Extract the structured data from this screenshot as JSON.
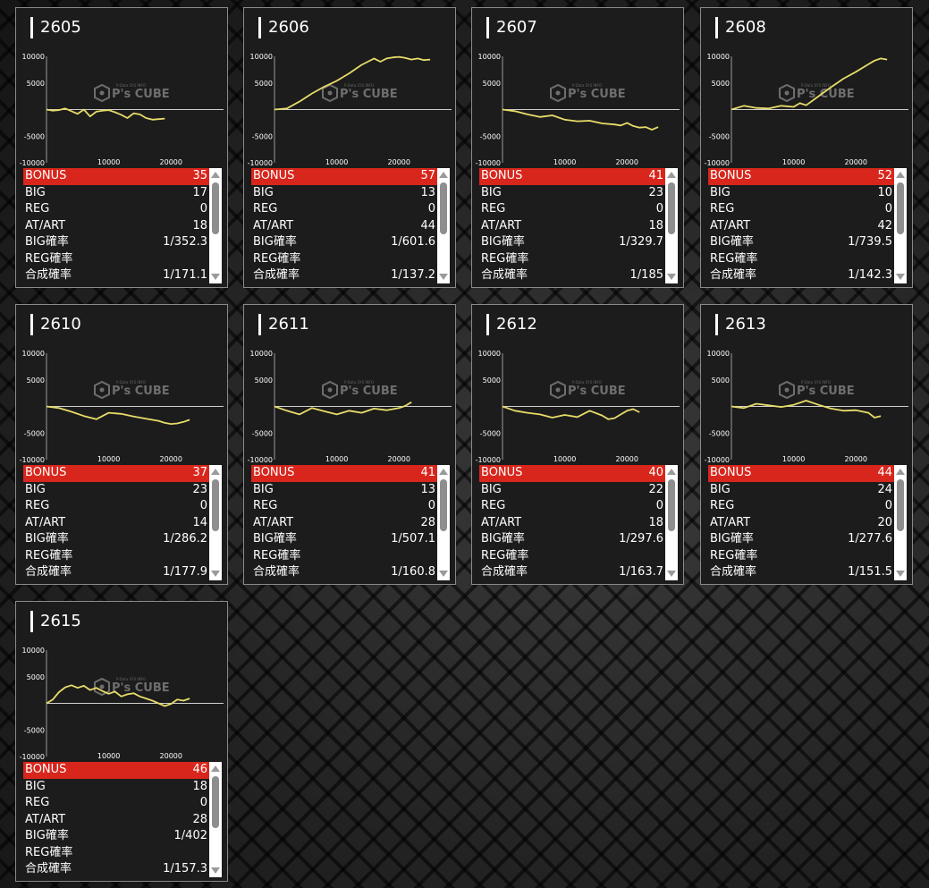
{
  "watermark": {
    "brand": "P's CUBE",
    "tagline": "P-Data SYS INFO"
  },
  "y_ticks": [
    "10000",
    "5000",
    "-5000",
    "-10000"
  ],
  "x_ticks": [
    "10000",
    "20000"
  ],
  "line_color": "#e8dc6a",
  "highlight_color": "#d8261c",
  "machines": [
    {
      "id": "2605",
      "stats": [
        [
          "BONUS",
          "35"
        ],
        [
          "BIG",
          "17"
        ],
        [
          "REG",
          "0"
        ],
        [
          "AT/ART",
          "18"
        ],
        [
          "BIG確率",
          "1/352.3"
        ],
        [
          "REG確率",
          ""
        ],
        [
          "合成確率",
          "1/171.1"
        ]
      ],
      "chart_data": {
        "type": "line",
        "x_range": [
          0,
          27000
        ],
        "y_range": [
          -10000,
          10000
        ],
        "x": [
          0,
          1000,
          2000,
          3000,
          4000,
          5000,
          6000,
          7000,
          8000,
          9000,
          10000,
          11000,
          12000,
          13000,
          14000,
          15000,
          16000,
          17000,
          18000,
          19000
        ],
        "y": [
          0,
          -200,
          -100,
          200,
          -300,
          -800,
          0,
          -1300,
          -400,
          -200,
          -100,
          -500,
          -1000,
          -1600,
          -700,
          -900,
          -1600,
          -1900,
          -1800,
          -1700
        ]
      }
    },
    {
      "id": "2606",
      "stats": [
        [
          "BONUS",
          "57"
        ],
        [
          "BIG",
          "13"
        ],
        [
          "REG",
          "0"
        ],
        [
          "AT/ART",
          "44"
        ],
        [
          "BIG確率",
          "1/601.6"
        ],
        [
          "REG確率",
          ""
        ],
        [
          "合成確率",
          "1/137.2"
        ]
      ],
      "chart_data": {
        "type": "line",
        "x_range": [
          0,
          27000
        ],
        "y_range": [
          -10000,
          10000
        ],
        "x": [
          0,
          2000,
          4000,
          6000,
          8000,
          10000,
          12000,
          13000,
          14000,
          15000,
          16000,
          17000,
          18000,
          19000,
          20000,
          21000,
          22000,
          23000,
          24000,
          25000
        ],
        "y": [
          0,
          200,
          1500,
          3000,
          4300,
          5400,
          6800,
          7600,
          8400,
          9000,
          9600,
          9000,
          9600,
          9800,
          9900,
          9700,
          9400,
          9600,
          9300,
          9400
        ]
      }
    },
    {
      "id": "2607",
      "stats": [
        [
          "BONUS",
          "41"
        ],
        [
          "BIG",
          "23"
        ],
        [
          "REG",
          "0"
        ],
        [
          "AT/ART",
          "18"
        ],
        [
          "BIG確率",
          "1/329.7"
        ],
        [
          "REG確率",
          ""
        ],
        [
          "合成確率",
          "1/185"
        ]
      ],
      "chart_data": {
        "type": "line",
        "x_range": [
          0,
          27000
        ],
        "y_range": [
          -10000,
          10000
        ],
        "x": [
          0,
          2000,
          4000,
          6000,
          8000,
          10000,
          12000,
          14000,
          16000,
          18000,
          19000,
          20000,
          21000,
          22000,
          23000,
          24000,
          25000
        ],
        "y": [
          0,
          -300,
          -900,
          -1400,
          -1100,
          -1900,
          -2200,
          -2100,
          -2600,
          -2800,
          -3000,
          -2500,
          -3100,
          -3400,
          -3300,
          -3800,
          -3300
        ]
      }
    },
    {
      "id": "2608",
      "stats": [
        [
          "BONUS",
          "52"
        ],
        [
          "BIG",
          "10"
        ],
        [
          "REG",
          "0"
        ],
        [
          "AT/ART",
          "42"
        ],
        [
          "BIG確率",
          "1/739.5"
        ],
        [
          "REG確率",
          ""
        ],
        [
          "合成確率",
          "1/142.3"
        ]
      ],
      "chart_data": {
        "type": "line",
        "x_range": [
          0,
          27000
        ],
        "y_range": [
          -10000,
          10000
        ],
        "x": [
          0,
          2000,
          4000,
          6000,
          8000,
          10000,
          11000,
          12000,
          14000,
          16000,
          18000,
          20000,
          22000,
          23000,
          24000,
          25000
        ],
        "y": [
          0,
          700,
          300,
          200,
          700,
          500,
          1200,
          800,
          2500,
          4200,
          5800,
          7100,
          8500,
          9200,
          9600,
          9400
        ]
      }
    },
    {
      "id": "2610",
      "stats": [
        [
          "BONUS",
          "37"
        ],
        [
          "BIG",
          "23"
        ],
        [
          "REG",
          "0"
        ],
        [
          "AT/ART",
          "14"
        ],
        [
          "BIG確率",
          "1/286.2"
        ],
        [
          "REG確率",
          ""
        ],
        [
          "合成確率",
          "1/177.9"
        ]
      ],
      "chart_data": {
        "type": "line",
        "x_range": [
          0,
          27000
        ],
        "y_range": [
          -10000,
          10000
        ],
        "x": [
          0,
          2000,
          4000,
          6000,
          8000,
          10000,
          12000,
          14000,
          16000,
          18000,
          19000,
          20000,
          21000,
          22000,
          23000
        ],
        "y": [
          0,
          -300,
          -1000,
          -1800,
          -2400,
          -1200,
          -1400,
          -1900,
          -2300,
          -2700,
          -3100,
          -3300,
          -3200,
          -2900,
          -2500
        ]
      }
    },
    {
      "id": "2611",
      "stats": [
        [
          "BONUS",
          "41"
        ],
        [
          "BIG",
          "13"
        ],
        [
          "REG",
          "0"
        ],
        [
          "AT/ART",
          "28"
        ],
        [
          "BIG確率",
          "1/507.1"
        ],
        [
          "REG確率",
          ""
        ],
        [
          "合成確率",
          "1/160.8"
        ]
      ],
      "chart_data": {
        "type": "line",
        "x_range": [
          0,
          27000
        ],
        "y_range": [
          -10000,
          10000
        ],
        "x": [
          0,
          2000,
          4000,
          6000,
          8000,
          10000,
          12000,
          14000,
          16000,
          18000,
          20000,
          21000,
          22000
        ],
        "y": [
          0,
          -800,
          -1500,
          -300,
          -900,
          -1500,
          -800,
          -1200,
          -400,
          -700,
          -300,
          100,
          800
        ]
      }
    },
    {
      "id": "2612",
      "stats": [
        [
          "BONUS",
          "40"
        ],
        [
          "BIG",
          "22"
        ],
        [
          "REG",
          "0"
        ],
        [
          "AT/ART",
          "18"
        ],
        [
          "BIG確率",
          "1/297.6"
        ],
        [
          "REG確率",
          ""
        ],
        [
          "合成確率",
          "1/163.7"
        ]
      ],
      "chart_data": {
        "type": "line",
        "x_range": [
          0,
          27000
        ],
        "y_range": [
          -10000,
          10000
        ],
        "x": [
          0,
          2000,
          4000,
          6000,
          8000,
          10000,
          12000,
          14000,
          16000,
          17000,
          18000,
          19000,
          20000,
          21000,
          22000
        ],
        "y": [
          0,
          -800,
          -1200,
          -1500,
          -2100,
          -1600,
          -2000,
          -800,
          -1700,
          -2400,
          -2200,
          -1500,
          -800,
          -500,
          -1100
        ]
      }
    },
    {
      "id": "2613",
      "stats": [
        [
          "BONUS",
          "44"
        ],
        [
          "BIG",
          "24"
        ],
        [
          "REG",
          "0"
        ],
        [
          "AT/ART",
          "20"
        ],
        [
          "BIG確率",
          "1/277.6"
        ],
        [
          "REG確率",
          ""
        ],
        [
          "合成確率",
          "1/151.5"
        ]
      ],
      "chart_data": {
        "type": "line",
        "x_range": [
          0,
          27000
        ],
        "y_range": [
          -10000,
          10000
        ],
        "x": [
          0,
          2000,
          4000,
          6000,
          8000,
          10000,
          12000,
          14000,
          16000,
          18000,
          20000,
          22000,
          23000,
          24000
        ],
        "y": [
          0,
          -300,
          500,
          200,
          -100,
          300,
          1100,
          300,
          -400,
          -800,
          -700,
          -1200,
          -2100,
          -1800
        ]
      }
    },
    {
      "id": "2615",
      "stats": [
        [
          "BONUS",
          "46"
        ],
        [
          "BIG",
          "18"
        ],
        [
          "REG",
          "0"
        ],
        [
          "AT/ART",
          "28"
        ],
        [
          "BIG確率",
          "1/402"
        ],
        [
          "REG確率",
          ""
        ],
        [
          "合成確率",
          "1/157.3"
        ]
      ],
      "chart_data": {
        "type": "line",
        "x_range": [
          0,
          27000
        ],
        "y_range": [
          -10000,
          10000
        ],
        "x": [
          0,
          1000,
          2000,
          3000,
          4000,
          5000,
          6000,
          7000,
          8000,
          9000,
          10000,
          11000,
          12000,
          13000,
          14000,
          15000,
          16000,
          17000,
          18000,
          19000,
          20000,
          21000,
          22000,
          23000
        ],
        "y": [
          0,
          700,
          2100,
          3000,
          3400,
          2900,
          3300,
          2500,
          2900,
          2300,
          1800,
          2200,
          1300,
          1700,
          1900,
          1300,
          900,
          500,
          0,
          -500,
          -100,
          700,
          500,
          900
        ]
      }
    }
  ]
}
